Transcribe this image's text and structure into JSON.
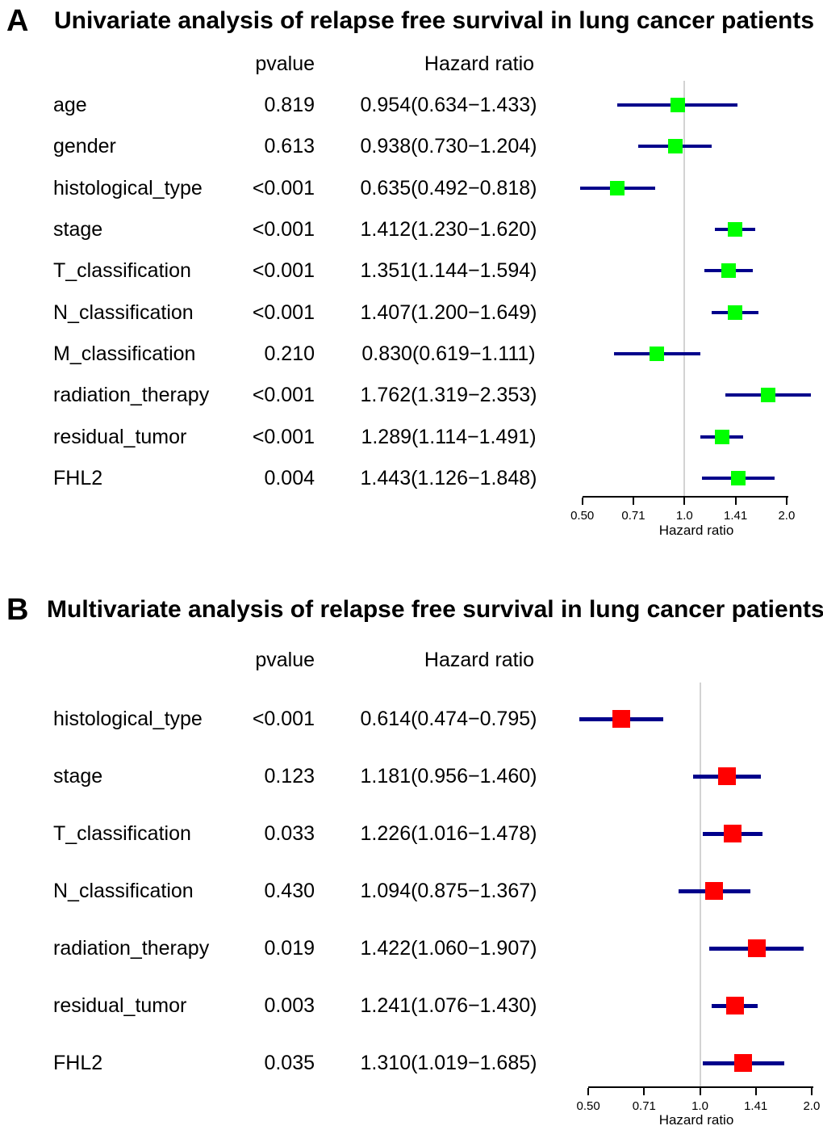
{
  "colors": {
    "background": "#ffffff",
    "text": "#000000",
    "ci_line": "#00008B",
    "reference_line": "#D3D3D3",
    "axis_line": "#000000",
    "panel_a_marker": "#00FF00",
    "panel_b_marker": "#FF0000"
  },
  "chart_data": [
    {
      "type": "forest",
      "panel_label": "A",
      "title": "Univariate analysis of relapse free survival in lung cancer patients",
      "col_headers": {
        "pvalue": "pvalue",
        "hazard_ratio": "Hazard ratio"
      },
      "xlabel": "Hazard ratio",
      "x_scale": "log2",
      "xlim": [
        0.5,
        2.0
      ],
      "x_tick_values": [
        0.5,
        0.7071,
        1.0,
        1.4142,
        2.0
      ],
      "x_tick_labels": [
        "0.50",
        "0.71",
        "1.0",
        "1.41",
        "2.0"
      ],
      "ref_value": 1.0,
      "marker_color": "#00FF00",
      "rows": [
        {
          "label": "age",
          "pvalue": "0.819",
          "hr_text": "0.954(0.634−1.433)",
          "hr": 0.954,
          "lo": 0.634,
          "hi": 1.433
        },
        {
          "label": "gender",
          "pvalue": "0.613",
          "hr_text": "0.938(0.730−1.204)",
          "hr": 0.938,
          "lo": 0.73,
          "hi": 1.204
        },
        {
          "label": "histological_type",
          "pvalue": "<0.001",
          "hr_text": "0.635(0.492−0.818)",
          "hr": 0.635,
          "lo": 0.492,
          "hi": 0.818
        },
        {
          "label": "stage",
          "pvalue": "<0.001",
          "hr_text": "1.412(1.230−1.620)",
          "hr": 1.412,
          "lo": 1.23,
          "hi": 1.62
        },
        {
          "label": "T_classification",
          "pvalue": "<0.001",
          "hr_text": "1.351(1.144−1.594)",
          "hr": 1.351,
          "lo": 1.144,
          "hi": 1.594
        },
        {
          "label": "N_classification",
          "pvalue": "<0.001",
          "hr_text": "1.407(1.200−1.649)",
          "hr": 1.407,
          "lo": 1.2,
          "hi": 1.649
        },
        {
          "label": "M_classification",
          "pvalue": "0.210",
          "hr_text": "0.830(0.619−1.111)",
          "hr": 0.83,
          "lo": 0.619,
          "hi": 1.111
        },
        {
          "label": "radiation_therapy",
          "pvalue": "<0.001",
          "hr_text": "1.762(1.319−2.353)",
          "hr": 1.762,
          "lo": 1.319,
          "hi": 2.353
        },
        {
          "label": "residual_tumor",
          "pvalue": "<0.001",
          "hr_text": "1.289(1.114−1.491)",
          "hr": 1.289,
          "lo": 1.114,
          "hi": 1.491
        },
        {
          "label": "FHL2",
          "pvalue": "0.004",
          "hr_text": "1.443(1.126−1.848)",
          "hr": 1.443,
          "lo": 1.126,
          "hi": 1.848
        }
      ]
    },
    {
      "type": "forest",
      "panel_label": "B",
      "title": "Multivariate analysis of relapse free survival in lung cancer patients",
      "col_headers": {
        "pvalue": "pvalue",
        "hazard_ratio": "Hazard ratio"
      },
      "xlabel": "Hazard ratio",
      "x_scale": "log2",
      "xlim": [
        0.5,
        2.0
      ],
      "x_tick_values": [
        0.5,
        0.7071,
        1.0,
        1.4142,
        2.0
      ],
      "x_tick_labels": [
        "0.50",
        "0.71",
        "1.0",
        "1.41",
        "2.0"
      ],
      "ref_value": 1.0,
      "marker_color": "#FF0000",
      "rows": [
        {
          "label": "histological_type",
          "pvalue": "<0.001",
          "hr_text": "0.614(0.474−0.795)",
          "hr": 0.614,
          "lo": 0.474,
          "hi": 0.795
        },
        {
          "label": "stage",
          "pvalue": "0.123",
          "hr_text": "1.181(0.956−1.460)",
          "hr": 1.181,
          "lo": 0.956,
          "hi": 1.46
        },
        {
          "label": "T_classification",
          "pvalue": "0.033",
          "hr_text": "1.226(1.016−1.478)",
          "hr": 1.226,
          "lo": 1.016,
          "hi": 1.478
        },
        {
          "label": "N_classification",
          "pvalue": "0.430",
          "hr_text": "1.094(0.875−1.367)",
          "hr": 1.094,
          "lo": 0.875,
          "hi": 1.367
        },
        {
          "label": "radiation_therapy",
          "pvalue": "0.019",
          "hr_text": "1.422(1.060−1.907)",
          "hr": 1.422,
          "lo": 1.06,
          "hi": 1.907
        },
        {
          "label": "residual_tumor",
          "pvalue": "0.003",
          "hr_text": "1.241(1.076−1.430)",
          "hr": 1.241,
          "lo": 1.076,
          "hi": 1.43
        },
        {
          "label": "FHL2",
          "pvalue": "0.035",
          "hr_text": "1.310(1.019−1.685)",
          "hr": 1.31,
          "lo": 1.019,
          "hi": 1.685
        }
      ]
    }
  ]
}
